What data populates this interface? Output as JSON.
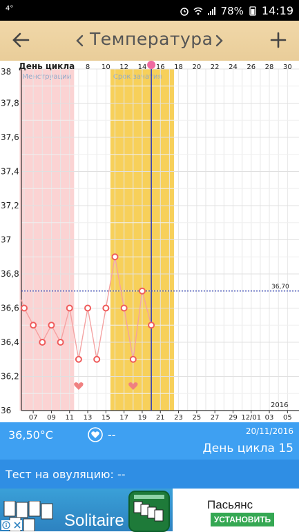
{
  "status": {
    "left_indicator": "4°",
    "battery": "78%",
    "time": "14:19"
  },
  "app_bar": {
    "title": "Температура",
    "prev_icon": "chevron-left-icon",
    "next_icon": "chevron-right-icon",
    "back_icon": "arrow-left-icon",
    "add_icon": "plus-icon"
  },
  "chart_data": {
    "type": "line",
    "top_axis_label": "День цикла",
    "top_ticks": [
      "8",
      "10",
      "12",
      "14",
      "16",
      "18",
      "20",
      "22",
      "24",
      "26",
      "28",
      "30"
    ],
    "bottom_ticks": [
      "07",
      "09",
      "11",
      "13",
      "15",
      "17",
      "19",
      "21",
      "23",
      "25",
      "27",
      "29",
      "12/01",
      "03",
      "05"
    ],
    "year_label": "2016",
    "y_ticks": [
      "38",
      "37,8",
      "37,6",
      "37,4",
      "37,2",
      "37",
      "36,8",
      "36,6",
      "36,4",
      "36,2",
      "36"
    ],
    "ylim": [
      36,
      38
    ],
    "bands": [
      {
        "label": "Менструации",
        "start_day": 1,
        "end_day": 6,
        "color": "#fbd3d3"
      },
      {
        "label": "Срок зачатия",
        "start_day": 11,
        "end_day": 17,
        "color": "#f7d05a"
      }
    ],
    "coverline": {
      "value": 36.7,
      "label": "36,70"
    },
    "current_day": 15,
    "points": [
      {
        "day": 1,
        "value": 36.6
      },
      {
        "day": 2,
        "value": 36.5
      },
      {
        "day": 3,
        "value": 36.4
      },
      {
        "day": 4,
        "value": 36.5
      },
      {
        "day": 5,
        "value": 36.4
      },
      {
        "day": 6,
        "value": 36.6
      },
      {
        "day": 7,
        "value": 36.3
      },
      {
        "day": 8,
        "value": 36.6
      },
      {
        "day": 9,
        "value": 36.3
      },
      {
        "day": 10,
        "value": 36.6
      },
      {
        "day": 11,
        "value": 36.9
      },
      {
        "day": 12,
        "value": 36.6
      },
      {
        "day": 13,
        "value": 36.3
      },
      {
        "day": 14,
        "value": 36.7
      },
      {
        "day": 15,
        "value": 36.5
      }
    ],
    "hearts_days": [
      7,
      13
    ]
  },
  "info": {
    "temperature": "36,50°C",
    "heart_value": "--",
    "date": "20/11/2016",
    "cycle_day": "День цикла 15"
  },
  "ovulation": {
    "label": "Тест на овуляцию: --"
  },
  "ad": {
    "left_text": "Solitaire",
    "title": "Пасьянс",
    "install": "УСТАНОВИТЬ"
  }
}
